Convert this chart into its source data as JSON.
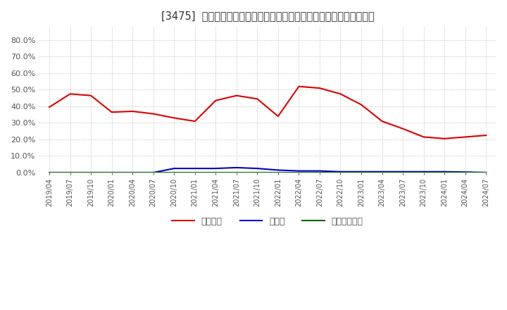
{
  "title": "[3475]  自己資本、のれん、繰延税金資産の総資産に対する比率の推移",
  "x_labels": [
    "2019/04",
    "2019/07",
    "2019/10",
    "2020/01",
    "2020/04",
    "2020/07",
    "2020/10",
    "2021/01",
    "2021/04",
    "2021/07",
    "2021/10",
    "2022/01",
    "2022/04",
    "2022/07",
    "2022/10",
    "2023/01",
    "2023/04",
    "2023/07",
    "2023/10",
    "2024/01",
    "2024/04",
    "2024/07"
  ],
  "equity_ratio": [
    0.395,
    0.475,
    0.465,
    0.365,
    0.37,
    0.355,
    0.33,
    0.31,
    0.435,
    0.465,
    0.445,
    0.34,
    0.52,
    0.51,
    0.475,
    0.41,
    0.31,
    0.265,
    0.215,
    0.205,
    0.215,
    0.225
  ],
  "goodwill_ratio": [
    0.0,
    0.0,
    0.0,
    0.0,
    0.0,
    0.0,
    0.025,
    0.025,
    0.025,
    0.03,
    0.025,
    0.015,
    0.01,
    0.01,
    0.005,
    0.005,
    0.005,
    0.005,
    0.005,
    0.005,
    0.003,
    0.0
  ],
  "deferred_tax_ratio": [
    0.001,
    0.001,
    0.001,
    0.001,
    0.001,
    0.001,
    0.001,
    0.001,
    0.001,
    0.001,
    0.001,
    0.001,
    0.001,
    0.001,
    0.001,
    0.001,
    0.001,
    0.001,
    0.001,
    0.001,
    0.001,
    0.001
  ],
  "equity_color": "#dd0000",
  "goodwill_color": "#0000cc",
  "deferred_tax_color": "#006600",
  "background_color": "#ffffff",
  "plot_bg_color": "#ffffff",
  "grid_color": "#bbbbbb",
  "ylim": [
    0.0,
    0.88
  ],
  "yticks": [
    0.0,
    0.1,
    0.2,
    0.3,
    0.4,
    0.5,
    0.6,
    0.7,
    0.8
  ],
  "legend_labels": [
    "自己資本",
    "のれん",
    "繰延税金資産"
  ]
}
